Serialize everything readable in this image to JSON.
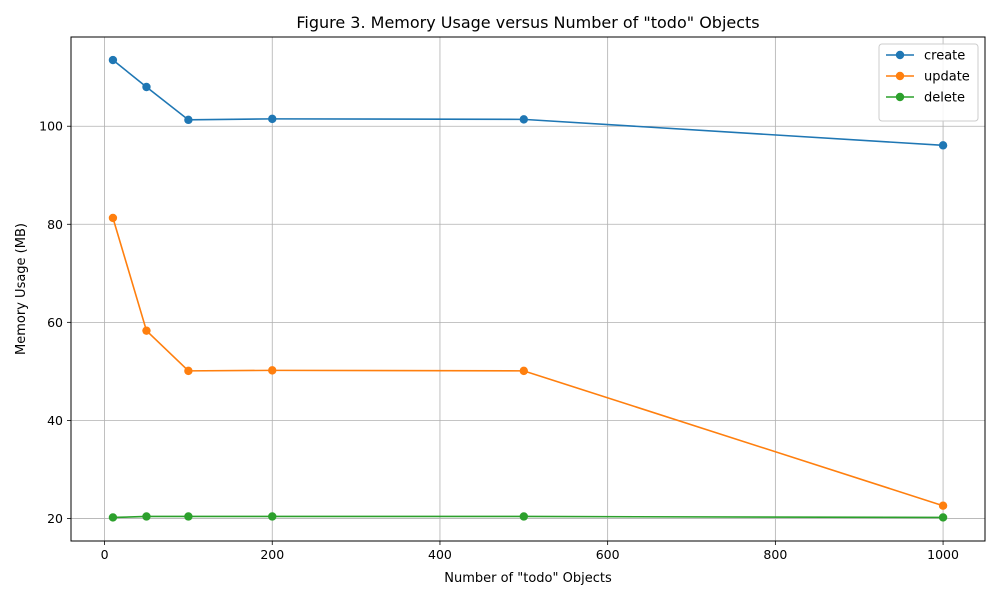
{
  "chart_data": {
    "type": "line",
    "title": "Figure 3. Memory Usage versus Number of \"todo\" Objects",
    "xlabel": "Number of \"todo\" Objects",
    "ylabel": "Memory Usage (MB)",
    "x": [
      10,
      50,
      100,
      200,
      500,
      1000
    ],
    "xlim": [
      -40,
      1050
    ],
    "ylim": [
      15.4,
      118.2
    ],
    "xticks": [
      0,
      200,
      400,
      600,
      800,
      1000
    ],
    "yticks": [
      20,
      40,
      60,
      80,
      100
    ],
    "grid": true,
    "legend_position": "top-right",
    "series": [
      {
        "name": "create",
        "color": "#1f77b4",
        "values": [
          113.5,
          108.0,
          101.3,
          101.5,
          101.4,
          96.1
        ]
      },
      {
        "name": "update",
        "color": "#ff7f0e",
        "values": [
          81.3,
          58.3,
          50.1,
          50.2,
          50.1,
          22.6
        ]
      },
      {
        "name": "delete",
        "color": "#2ca02c",
        "values": [
          20.2,
          20.4,
          20.4,
          20.4,
          20.4,
          20.2
        ]
      }
    ]
  }
}
